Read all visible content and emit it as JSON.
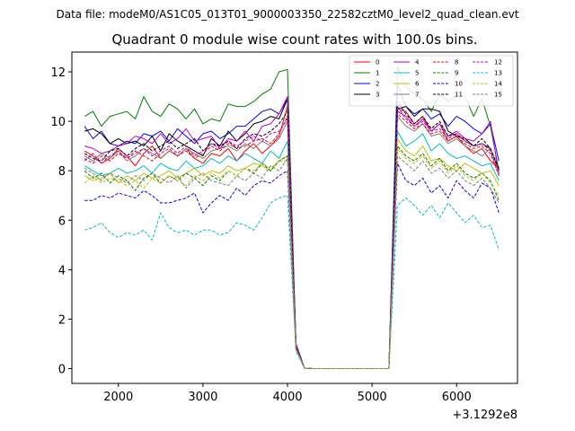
{
  "header": {
    "suptitle": "Data file: modeM0/AS1C05_013T01_9000003350_22582cztM0_level2_quad_clean.evt"
  },
  "chart_data": {
    "type": "line",
    "title": "Quadrant 0 module wise count rates with 100.0s bins.",
    "xlabel": "",
    "ylabel": "",
    "x_offset_label": "+3.1292e8",
    "xlim": [
      1450,
      6720
    ],
    "ylim": [
      -0.6,
      12.8
    ],
    "x_ticks": [
      2000,
      3000,
      4000,
      5000,
      6000
    ],
    "x_tick_labels": [
      "2000",
      "3000",
      "4000",
      "5000",
      "6000"
    ],
    "y_ticks": [
      0,
      2,
      4,
      6,
      8,
      10,
      12
    ],
    "y_tick_labels": [
      "0",
      "2",
      "4",
      "6",
      "8",
      "10",
      "12"
    ],
    "grid": false,
    "legend_position": "top-right",
    "legend_columns": 4,
    "x": [
      1600,
      1700,
      1800,
      1900,
      2000,
      2100,
      2200,
      2300,
      2400,
      2500,
      2600,
      2700,
      2800,
      2900,
      3000,
      3100,
      3200,
      3300,
      3400,
      3500,
      3600,
      3700,
      3800,
      3900,
      4000,
      4100,
      4200,
      4300,
      4400,
      4500,
      4600,
      4700,
      4800,
      4900,
      5000,
      5100,
      5200,
      5300,
      5400,
      5500,
      5600,
      5700,
      5800,
      5900,
      6000,
      6100,
      6200,
      6300,
      6400,
      6500
    ],
    "series": [
      {
        "name": "0",
        "color": "#ff0000",
        "dash": "solid",
        "values": [
          8.8,
          8.6,
          8.3,
          8.5,
          8.9,
          8.6,
          8.2,
          8.7,
          9.0,
          8.5,
          8.8,
          8.6,
          8.9,
          8.5,
          8.3,
          8.7,
          8.6,
          8.9,
          8.4,
          8.8,
          9.1,
          8.7,
          9.0,
          9.4,
          10.6,
          0.9,
          0.02,
          0,
          0,
          0,
          0,
          0,
          0,
          0,
          0,
          0,
          0,
          10.5,
          10.4,
          9.9,
          10.2,
          9.6,
          9.9,
          9.2,
          9.4,
          9.0,
          8.7,
          8.9,
          8.4,
          8.1
        ]
      },
      {
        "name": "1",
        "color": "#008000",
        "dash": "solid",
        "values": [
          10.2,
          10.4,
          9.8,
          10.2,
          10.3,
          10.4,
          10.1,
          11.0,
          10.4,
          10.2,
          10.7,
          10.5,
          10.1,
          10.5,
          9.9,
          10.1,
          10.0,
          10.7,
          10.6,
          10.6,
          10.8,
          11.1,
          11.3,
          12.0,
          12.1,
          1.0,
          0.02,
          0,
          0,
          0,
          0,
          0,
          0,
          0,
          0,
          0,
          0,
          12.2,
          11.4,
          11.1,
          10.9,
          10.4,
          11.1,
          10.8,
          11.1,
          11.0,
          10.2,
          10.9,
          9.8,
          8.0
        ]
      },
      {
        "name": "2",
        "color": "#0000ff",
        "dash": "solid",
        "values": [
          9.8,
          9.3,
          9.6,
          9.1,
          9.0,
          9.2,
          9.1,
          9.5,
          9.4,
          9.6,
          9.2,
          9.7,
          9.4,
          9.1,
          9.5,
          9.6,
          9.3,
          9.5,
          9.8,
          9.8,
          10.1,
          10.4,
          10.5,
          10.3,
          10.9,
          1.0,
          0.02,
          0,
          0,
          0,
          0,
          0,
          0,
          0,
          0,
          0,
          0,
          11.5,
          10.6,
          10.3,
          10.5,
          10.1,
          10.3,
          9.8,
          10.2,
          10.0,
          9.7,
          9.5,
          9.9,
          8.4
        ]
      },
      {
        "name": "3",
        "color": "#000000",
        "dash": "solid",
        "values": [
          9.6,
          9.7,
          9.5,
          9.1,
          9.3,
          9.1,
          9.2,
          9.0,
          9.4,
          8.8,
          9.5,
          9.2,
          9.0,
          8.8,
          8.6,
          9.3,
          9.0,
          9.6,
          9.2,
          9.5,
          9.9,
          10.0,
          10.2,
          10.1,
          10.9,
          1.0,
          0.02,
          0,
          0,
          0,
          0,
          0,
          0,
          0,
          0,
          0,
          0,
          10.5,
          10.6,
          10.2,
          10.5,
          10.5,
          10.4,
          9.6,
          9.4,
          9.3,
          9.0,
          9.1,
          8.9,
          8.0
        ]
      },
      {
        "name": "4",
        "color": "#bf00bf",
        "dash": "solid",
        "values": [
          9.0,
          8.9,
          8.7,
          8.8,
          9.0,
          9.1,
          9.4,
          9.3,
          9.1,
          9.5,
          9.1,
          9.3,
          9.7,
          9.2,
          9.3,
          9.4,
          8.9,
          9.3,
          9.2,
          9.6,
          9.2,
          9.8,
          9.9,
          10.3,
          11.0,
          1.0,
          0.02,
          0,
          0,
          0,
          0,
          0,
          0,
          0,
          0,
          0,
          0,
          10.4,
          10.2,
          9.8,
          10.1,
          9.6,
          9.9,
          9.4,
          9.6,
          9.3,
          9.2,
          9.5,
          10.0,
          7.8
        ]
      },
      {
        "name": "5",
        "color": "#00bfbf",
        "dash": "solid",
        "values": [
          8.2,
          8.0,
          7.8,
          7.9,
          8.1,
          7.9,
          8.0,
          8.2,
          7.9,
          8.3,
          8.1,
          8.0,
          8.4,
          8.1,
          8.2,
          8.5,
          8.3,
          8.6,
          8.4,
          8.7,
          8.5,
          8.3,
          8.8,
          8.5,
          9.2,
          0.9,
          0.02,
          0,
          0,
          0,
          0,
          0,
          0,
          0,
          0,
          0,
          0,
          9.6,
          9.0,
          9.2,
          9.5,
          8.8,
          9.1,
          8.7,
          8.5,
          8.6,
          8.4,
          8.2,
          8.3,
          7.6
        ]
      },
      {
        "name": "6",
        "color": "#bfbf00",
        "dash": "solid",
        "values": [
          7.8,
          7.6,
          7.7,
          7.9,
          7.5,
          7.8,
          7.6,
          7.9,
          7.7,
          7.8,
          8.0,
          7.7,
          7.9,
          8.1,
          7.8,
          8.0,
          7.9,
          8.2,
          8.0,
          8.1,
          8.3,
          8.2,
          8.0,
          8.4,
          8.6,
          0.8,
          0.02,
          0,
          0,
          0,
          0,
          0,
          0,
          0,
          0,
          0,
          0,
          9.3,
          8.8,
          8.6,
          9.0,
          8.4,
          8.5,
          8.2,
          8.0,
          8.3,
          8.1,
          7.9,
          8.0,
          7.4
        ]
      },
      {
        "name": "7",
        "color": "#7f7f7f",
        "dash": "solid",
        "values": [
          8.6,
          8.4,
          8.7,
          8.5,
          8.8,
          8.4,
          8.6,
          8.9,
          8.7,
          8.5,
          8.8,
          8.6,
          8.9,
          8.7,
          8.5,
          8.8,
          8.9,
          9.0,
          8.8,
          9.1,
          8.9,
          9.2,
          9.0,
          9.3,
          10.0,
          0.9,
          0.02,
          0,
          0,
          0,
          0,
          0,
          0,
          0,
          0,
          0,
          0,
          10.2,
          9.8,
          9.6,
          9.9,
          9.4,
          9.5,
          9.1,
          9.3,
          9.0,
          8.8,
          8.6,
          8.9,
          7.9
        ]
      },
      {
        "name": "8",
        "color": "#ff0000",
        "dash": "dashed",
        "values": [
          8.5,
          8.3,
          8.6,
          8.4,
          8.7,
          8.5,
          8.8,
          8.6,
          8.4,
          8.7,
          8.9,
          8.6,
          8.8,
          8.5,
          8.7,
          9.0,
          8.8,
          9.1,
          8.9,
          9.0,
          9.2,
          9.3,
          9.1,
          9.5,
          10.2,
          0.9,
          0.02,
          0,
          0,
          0,
          0,
          0,
          0,
          0,
          0,
          0,
          0,
          10.3,
          10.0,
          9.7,
          9.9,
          9.5,
          9.6,
          9.2,
          9.4,
          9.1,
          8.9,
          9.0,
          8.7,
          7.8
        ]
      },
      {
        "name": "9",
        "color": "#008000",
        "dash": "dashed",
        "values": [
          8.0,
          7.7,
          7.9,
          7.5,
          7.8,
          7.6,
          7.2,
          7.7,
          7.9,
          7.5,
          7.8,
          7.6,
          7.9,
          7.7,
          7.4,
          7.8,
          7.6,
          8.0,
          7.8,
          8.1,
          7.9,
          8.3,
          8.0,
          8.4,
          8.6,
          0.8,
          0.02,
          0,
          0,
          0,
          0,
          0,
          0,
          0,
          0,
          0,
          0,
          9.0,
          8.6,
          8.4,
          8.7,
          8.2,
          8.5,
          8.0,
          8.3,
          7.9,
          7.7,
          7.9,
          7.6,
          6.8
        ]
      },
      {
        "name": "10",
        "color": "#0000ff",
        "dash": "dashed",
        "values": [
          6.8,
          6.8,
          7.0,
          6.9,
          7.1,
          7.0,
          6.9,
          7.2,
          7.0,
          6.7,
          6.7,
          6.8,
          6.9,
          7.1,
          6.3,
          6.7,
          7.0,
          6.8,
          7.3,
          7.0,
          7.4,
          7.6,
          7.5,
          7.8,
          8.0,
          0.8,
          0.02,
          0,
          0,
          0,
          0,
          0,
          0,
          0,
          0,
          0,
          0,
          8.3,
          7.6,
          7.4,
          7.7,
          7.1,
          7.4,
          6.9,
          7.6,
          7.2,
          6.9,
          7.5,
          7.3,
          6.3
        ]
      },
      {
        "name": "11",
        "color": "#000000",
        "dash": "dashed",
        "values": [
          8.7,
          8.5,
          8.4,
          8.8,
          8.9,
          8.6,
          8.9,
          9.1,
          8.8,
          9.0,
          9.2,
          8.9,
          9.1,
          9.3,
          8.8,
          9.1,
          9.0,
          9.2,
          8.9,
          9.3,
          9.5,
          9.4,
          9.6,
          9.9,
          10.4,
          0.9,
          0.02,
          0,
          0,
          0,
          0,
          0,
          0,
          0,
          0,
          0,
          0,
          10.8,
          10.3,
          9.9,
          10.2,
          9.7,
          10.0,
          9.4,
          9.5,
          9.2,
          9.0,
          9.3,
          8.9,
          8.1
        ]
      },
      {
        "name": "12",
        "color": "#bf00bf",
        "dash": "dashed",
        "values": [
          8.4,
          8.7,
          8.3,
          8.6,
          8.8,
          8.5,
          8.7,
          8.9,
          8.6,
          8.8,
          9.0,
          8.7,
          9.0,
          8.6,
          8.8,
          9.1,
          8.9,
          9.2,
          9.0,
          9.2,
          9.4,
          9.2,
          9.5,
          9.6,
          10.1,
          0.9,
          0.02,
          0,
          0,
          0,
          0,
          0,
          0,
          0,
          0,
          0,
          0,
          10.6,
          10.1,
          9.8,
          10.0,
          9.6,
          9.7,
          9.3,
          9.5,
          9.2,
          9.0,
          9.1,
          8.8,
          7.9
        ]
      },
      {
        "name": "13",
        "color": "#00bfbf",
        "dash": "dashed",
        "values": [
          5.6,
          5.7,
          5.9,
          5.5,
          5.3,
          5.5,
          5.4,
          5.6,
          5.2,
          6.3,
          5.7,
          5.5,
          5.6,
          5.4,
          5.6,
          5.6,
          5.4,
          5.5,
          5.9,
          5.8,
          5.6,
          6.1,
          6.7,
          6.9,
          7.0,
          0.7,
          0.02,
          0,
          0,
          0,
          0,
          0,
          0,
          0,
          0,
          0,
          0,
          6.6,
          6.9,
          6.6,
          6.2,
          6.6,
          6.1,
          6.7,
          6.3,
          5.9,
          6.2,
          5.7,
          5.8,
          4.8
        ]
      },
      {
        "name": "14",
        "color": "#bfbf00",
        "dash": "dashed",
        "values": [
          7.5,
          7.8,
          7.5,
          7.7,
          7.6,
          7.4,
          7.6,
          7.3,
          7.7,
          7.5,
          7.8,
          7.6,
          7.4,
          7.8,
          7.6,
          7.9,
          7.7,
          8.0,
          7.8,
          8.1,
          8.0,
          8.3,
          8.1,
          8.4,
          8.4,
          0.8,
          0.02,
          0,
          0,
          0,
          0,
          0,
          0,
          0,
          0,
          0,
          0,
          8.9,
          8.5,
          8.3,
          8.6,
          8.1,
          8.4,
          7.9,
          8.2,
          7.8,
          7.6,
          7.9,
          7.5,
          7.0
        ]
      },
      {
        "name": "15",
        "color": "#7f7f7f",
        "dash": "dashed",
        "values": [
          8.1,
          7.9,
          7.6,
          7.9,
          7.7,
          7.5,
          7.8,
          7.6,
          7.9,
          7.7,
          7.5,
          7.8,
          7.3,
          7.7,
          7.9,
          7.6,
          7.5,
          7.4,
          7.8,
          7.6,
          7.9,
          7.7,
          8.2,
          8.0,
          8.5,
          0.8,
          0.02,
          0,
          0,
          0,
          0,
          0,
          0,
          0,
          0,
          0,
          0,
          8.6,
          8.3,
          8.0,
          8.4,
          7.9,
          8.1,
          7.7,
          8.0,
          7.6,
          7.4,
          7.7,
          7.3,
          6.7
        ]
      }
    ]
  }
}
